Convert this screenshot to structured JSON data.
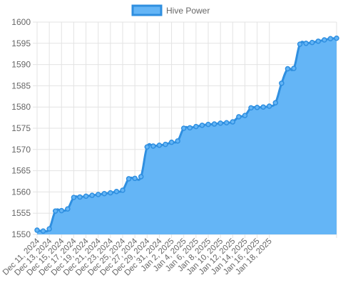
{
  "chart_data": {
    "type": "area",
    "series": [
      {
        "name": "Hive Power",
        "fill_color": "#64b5f6",
        "line_color": "#2f8fe0",
        "values": [
          1551.0,
          1550.8,
          1551.3,
          1555.5,
          1555.6,
          1556.0,
          1558.7,
          1558.8,
          1559.0,
          1559.2,
          1559.4,
          1559.6,
          1559.8,
          1560.1,
          1560.4,
          1563.1,
          1563.2,
          1563.6,
          1570.6,
          1570.8,
          1571.0,
          1571.2,
          1571.7,
          1572.0,
          1575.0,
          1575.1,
          1575.4,
          1575.7,
          1575.9,
          1576.0,
          1576.2,
          1576.3,
          1576.5,
          1577.7,
          1578.0,
          1579.8,
          1579.9,
          1580.0,
          1580.2,
          1581.0,
          1585.6,
          1589.0,
          1589.1,
          1594.8,
          1595.0,
          1595.2,
          1595.5,
          1595.8,
          1596.1,
          1596.2
        ]
      }
    ],
    "x_tick_labels": [
      "Dec 11, 2024",
      "Dec 13, 2024",
      "Dec 15, 2024",
      "Dec 17, 2024",
      "Dec 19, 2024",
      "Dec 21, 2024",
      "Dec 23, 2024",
      "Dec 25, 2024",
      "Dec 27, 2024",
      "Dec 29, 2024",
      "Dec 31, 2024",
      "Jan 2, 2025",
      "Jan 4, 2025",
      "Jan 6, 2025",
      "Jan 8, 2025",
      "Jan 10, 2025",
      "Jan 12, 2025",
      "Jan 14, 2025",
      "Jan 16, 2025",
      "Jan 18, 2025"
    ],
    "y_ticks": [
      1550,
      1555,
      1560,
      1565,
      1570,
      1575,
      1580,
      1585,
      1590,
      1595,
      1600
    ],
    "ylim": [
      1550,
      1600
    ],
    "grid": true,
    "legend_position": "top"
  }
}
